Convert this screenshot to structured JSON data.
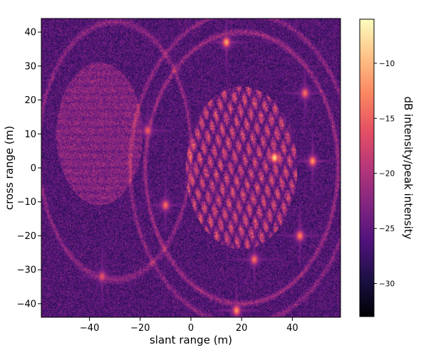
{
  "chart_data": {
    "type": "heatmap",
    "title": "",
    "xlabel": "slant range (m)",
    "ylabel": "cross range (m)",
    "xlim": [
      -59,
      59
    ],
    "ylim": [
      -44,
      44
    ],
    "xticks": [
      -40,
      -20,
      0,
      20,
      40
    ],
    "xtick_labels": [
      "−40",
      "−20",
      "0",
      "20",
      "40"
    ],
    "yticks": [
      -40,
      -30,
      -20,
      -10,
      0,
      10,
      20,
      30,
      40
    ],
    "ytick_labels": [
      "−40",
      "−30",
      "−20",
      "−10",
      "0",
      "10",
      "20",
      "30",
      "40"
    ],
    "colorbar": {
      "label": "dB intensity/peak intensity",
      "colormap": "magma",
      "range": [
        -33,
        -6
      ],
      "ticks": [
        -30,
        -25,
        -20,
        -15,
        -10
      ],
      "tick_labels": [
        "−30",
        "−25",
        "−20",
        "−15",
        "−10"
      ]
    },
    "background_level_db": -26,
    "features": [
      {
        "kind": "ellipse-region",
        "cx": -36,
        "cy": 10,
        "rx": 17,
        "ry": 21,
        "db": -22
      },
      {
        "kind": "arc",
        "cx": -30,
        "cy": 5,
        "rx": 30,
        "ry": 38,
        "db": -22
      },
      {
        "kind": "arc",
        "cx": 20,
        "cy": 0,
        "rx": 38,
        "ry": 40,
        "db": -21
      },
      {
        "kind": "arc",
        "cx": 20,
        "cy": 0,
        "rx": 44,
        "ry": 46,
        "db": -22
      },
      {
        "kind": "grid-region",
        "cx": 20,
        "cy": 0,
        "rx": 22,
        "ry": 24,
        "db": -20
      },
      {
        "kind": "point",
        "x": 33,
        "y": 3,
        "db": -8
      },
      {
        "kind": "point",
        "x": 48,
        "y": 2,
        "db": -12
      },
      {
        "kind": "point",
        "x": 43,
        "y": -20,
        "db": -13
      },
      {
        "kind": "point",
        "x": 45,
        "y": 22,
        "db": -14
      },
      {
        "kind": "point",
        "x": 14,
        "y": 37,
        "db": -11
      },
      {
        "kind": "point",
        "x": -10,
        "y": -11,
        "db": -14
      },
      {
        "kind": "point",
        "x": 18,
        "y": -42,
        "db": -12
      },
      {
        "kind": "point",
        "x": -17,
        "y": 11,
        "db": -15
      },
      {
        "kind": "point",
        "x": 25,
        "y": -27,
        "db": -14
      },
      {
        "kind": "point",
        "x": -35,
        "y": -32,
        "db": -16
      }
    ]
  }
}
